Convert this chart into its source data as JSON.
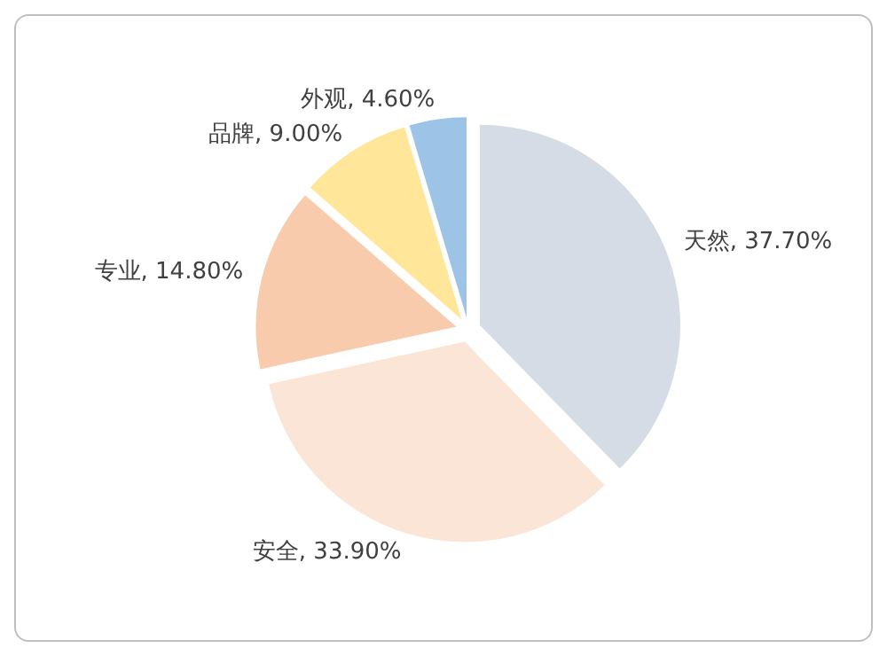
{
  "chart_data": {
    "type": "pie",
    "categories": [
      "天然",
      "安全",
      "专业",
      "品牌",
      "外观"
    ],
    "values": [
      37.7,
      33.9,
      14.8,
      9.0,
      4.6
    ],
    "value_labels": [
      "37.70%",
      "33.90%",
      "14.80%",
      "9.00%",
      "4.60%"
    ],
    "colors": [
      "#d6dce5",
      "#fbe5d6",
      "#f8cbad",
      "#ffe699",
      "#9dc3e6"
    ],
    "legend": false
  }
}
